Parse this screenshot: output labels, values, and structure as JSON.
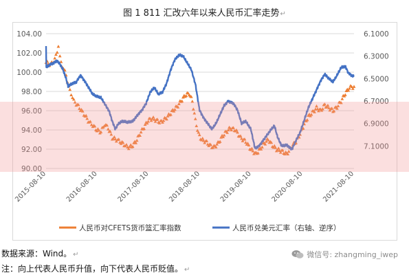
{
  "title": "图 1    811 汇改六年以来人民币汇率走势",
  "title_mark": "↵",
  "footer": {
    "source": "数据来源：Wind。",
    "note": "注：向上代表人民币升值，向下代表人民币贬值。",
    "mark": "↵",
    "watermark": "微信号: zhangming_iwep",
    "watermark_icon": "wechat-icon"
  },
  "colors": {
    "cfets": "#ED7D31",
    "usd": "#4472C4",
    "grid": "#d9d9d9",
    "band": "#f29696"
  },
  "chart_data": {
    "type": "line",
    "left_axis": {
      "ticks": [
        "104.00",
        "102.00",
        "100.00",
        "98.00",
        "96.00",
        "94.00",
        "92.00",
        "90.00"
      ],
      "ylim": [
        90,
        104
      ]
    },
    "right_axis": {
      "ticks": [
        "6.1000",
        "6.3000",
        "6.5000",
        "6.7000",
        "6.9000",
        "7.1000"
      ],
      "ylim": [
        6.1,
        7.3
      ],
      "inverted": true
    },
    "x_ticks": [
      "2015-08-10",
      "2016-08-10",
      "2017-08-10",
      "2018-08-10",
      "2019-08-10",
      "2020-08-10",
      "2021-08-10"
    ],
    "x_range": [
      2015.61,
      2021.61
    ],
    "legend": {
      "placement": "bottom"
    },
    "series": [
      {
        "name": "人民币对CFETS货币篮汇率指数",
        "axis": "left",
        "style": "triangle-markers",
        "points": [
          [
            2015.61,
            101.0
          ],
          [
            2015.7,
            100.8
          ],
          [
            2015.78,
            101.3
          ],
          [
            2015.85,
            102.7
          ],
          [
            2015.88,
            101.5
          ],
          [
            2015.95,
            100.3
          ],
          [
            2016.0,
            99.8
          ],
          [
            2016.05,
            98.4
          ],
          [
            2016.1,
            97.8
          ],
          [
            2016.15,
            97.0
          ],
          [
            2016.22,
            96.6
          ],
          [
            2016.3,
            96.0
          ],
          [
            2016.37,
            95.5
          ],
          [
            2016.45,
            94.8
          ],
          [
            2016.52,
            94.5
          ],
          [
            2016.6,
            94.0
          ],
          [
            2016.68,
            93.8
          ],
          [
            2016.75,
            94.6
          ],
          [
            2016.82,
            94.2
          ],
          [
            2016.9,
            93.2
          ],
          [
            2016.98,
            93.0
          ],
          [
            2017.05,
            92.8
          ],
          [
            2017.13,
            92.5
          ],
          [
            2017.2,
            92.2
          ],
          [
            2017.28,
            92.3
          ],
          [
            2017.36,
            92.8
          ],
          [
            2017.44,
            93.6
          ],
          [
            2017.52,
            94.3
          ],
          [
            2017.6,
            95.0
          ],
          [
            2017.68,
            95.2
          ],
          [
            2017.76,
            95.0
          ],
          [
            2017.84,
            94.8
          ],
          [
            2017.92,
            95.1
          ],
          [
            2018.0,
            95.5
          ],
          [
            2018.08,
            96.0
          ],
          [
            2018.16,
            96.4
          ],
          [
            2018.24,
            97.0
          ],
          [
            2018.32,
            97.6
          ],
          [
            2018.4,
            97.8
          ],
          [
            2018.46,
            97.0
          ],
          [
            2018.52,
            95.0
          ],
          [
            2018.58,
            93.6
          ],
          [
            2018.64,
            93.0
          ],
          [
            2018.72,
            92.8
          ],
          [
            2018.8,
            92.4
          ],
          [
            2018.88,
            92.2
          ],
          [
            2018.96,
            92.6
          ],
          [
            2019.04,
            93.3
          ],
          [
            2019.12,
            93.8
          ],
          [
            2019.2,
            94.2
          ],
          [
            2019.3,
            94.0
          ],
          [
            2019.4,
            93.2
          ],
          [
            2019.5,
            92.8
          ],
          [
            2019.6,
            92.0
          ],
          [
            2019.7,
            91.5
          ],
          [
            2019.78,
            92.0
          ],
          [
            2019.86,
            92.6
          ],
          [
            2019.94,
            93.0
          ],
          [
            2020.02,
            92.4
          ],
          [
            2020.1,
            92.0
          ],
          [
            2020.2,
            91.8
          ],
          [
            2020.3,
            91.5
          ],
          [
            2020.4,
            92.3
          ],
          [
            2020.48,
            92.8
          ],
          [
            2020.56,
            93.6
          ],
          [
            2020.64,
            94.6
          ],
          [
            2020.72,
            95.4
          ],
          [
            2020.8,
            95.8
          ],
          [
            2020.88,
            96.3
          ],
          [
            2020.96,
            96.0
          ],
          [
            2021.04,
            96.6
          ],
          [
            2021.12,
            96.3
          ],
          [
            2021.2,
            96.0
          ],
          [
            2021.28,
            96.4
          ],
          [
            2021.36,
            97.0
          ],
          [
            2021.44,
            97.8
          ],
          [
            2021.52,
            98.4
          ],
          [
            2021.61,
            98.5
          ]
        ]
      },
      {
        "name": "人民币兑美元汇率（右轴、逆序）",
        "axis": "right",
        "style": "line",
        "points": [
          [
            2015.61,
            6.21
          ],
          [
            2015.615,
            6.4
          ],
          [
            2015.64,
            6.39
          ],
          [
            2015.7,
            6.37
          ],
          [
            2015.76,
            6.36
          ],
          [
            2015.82,
            6.34
          ],
          [
            2015.88,
            6.37
          ],
          [
            2015.94,
            6.42
          ],
          [
            2016.0,
            6.5
          ],
          [
            2016.04,
            6.57
          ],
          [
            2016.1,
            6.55
          ],
          [
            2016.2,
            6.53
          ],
          [
            2016.28,
            6.47
          ],
          [
            2016.36,
            6.52
          ],
          [
            2016.44,
            6.58
          ],
          [
            2016.52,
            6.64
          ],
          [
            2016.6,
            6.66
          ],
          [
            2016.68,
            6.67
          ],
          [
            2016.76,
            6.73
          ],
          [
            2016.84,
            6.79
          ],
          [
            2016.9,
            6.88
          ],
          [
            2016.96,
            6.95
          ],
          [
            2017.02,
            6.9
          ],
          [
            2017.1,
            6.88
          ],
          [
            2017.2,
            6.89
          ],
          [
            2017.3,
            6.88
          ],
          [
            2017.4,
            6.82
          ],
          [
            2017.48,
            6.78
          ],
          [
            2017.56,
            6.72
          ],
          [
            2017.64,
            6.62
          ],
          [
            2017.72,
            6.58
          ],
          [
            2017.8,
            6.64
          ],
          [
            2017.88,
            6.62
          ],
          [
            2017.96,
            6.54
          ],
          [
            2018.04,
            6.42
          ],
          [
            2018.12,
            6.33
          ],
          [
            2018.2,
            6.29
          ],
          [
            2018.28,
            6.3
          ],
          [
            2018.36,
            6.36
          ],
          [
            2018.44,
            6.42
          ],
          [
            2018.52,
            6.55
          ],
          [
            2018.6,
            6.78
          ],
          [
            2018.68,
            6.85
          ],
          [
            2018.76,
            6.9
          ],
          [
            2018.84,
            6.95
          ],
          [
            2018.92,
            6.9
          ],
          [
            2019.0,
            6.82
          ],
          [
            2019.08,
            6.74
          ],
          [
            2019.16,
            6.7
          ],
          [
            2019.26,
            6.72
          ],
          [
            2019.34,
            6.78
          ],
          [
            2019.42,
            6.9
          ],
          [
            2019.5,
            6.88
          ],
          [
            2019.6,
            6.95
          ],
          [
            2019.68,
            7.12
          ],
          [
            2019.76,
            7.1
          ],
          [
            2019.84,
            7.05
          ],
          [
            2019.92,
            7.0
          ],
          [
            2020.0,
            6.95
          ],
          [
            2020.06,
            6.92
          ],
          [
            2020.12,
            7.02
          ],
          [
            2020.2,
            7.1
          ],
          [
            2020.3,
            7.09
          ],
          [
            2020.4,
            7.13
          ],
          [
            2020.48,
            7.05
          ],
          [
            2020.56,
            6.98
          ],
          [
            2020.64,
            6.87
          ],
          [
            2020.72,
            6.76
          ],
          [
            2020.8,
            6.68
          ],
          [
            2020.88,
            6.6
          ],
          [
            2020.96,
            6.52
          ],
          [
            2021.04,
            6.46
          ],
          [
            2021.12,
            6.5
          ],
          [
            2021.2,
            6.53
          ],
          [
            2021.28,
            6.47
          ],
          [
            2021.36,
            6.4
          ],
          [
            2021.44,
            6.39
          ],
          [
            2021.5,
            6.45
          ],
          [
            2021.56,
            6.47
          ],
          [
            2021.61,
            6.48
          ]
        ]
      }
    ]
  }
}
